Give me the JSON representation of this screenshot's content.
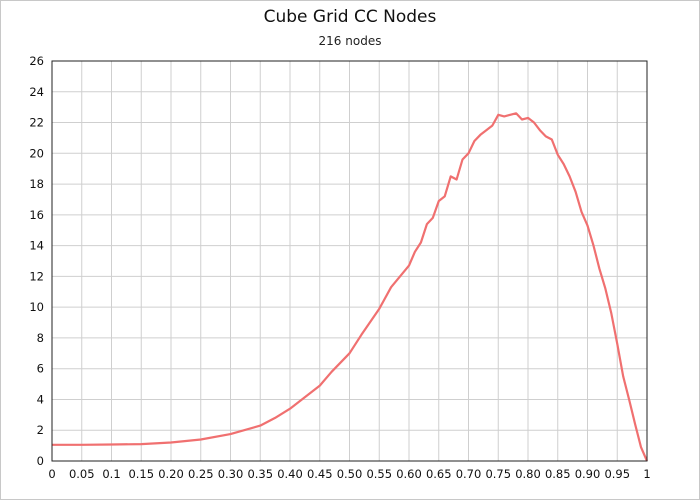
{
  "chart_data": {
    "type": "line",
    "title": "Cube Grid CC Nodes",
    "subtitle": "216 nodes",
    "xlabel": "",
    "ylabel": "",
    "xlim": [
      0,
      1
    ],
    "ylim": [
      0,
      26
    ],
    "xticks": [
      0,
      0.05,
      0.1,
      0.15,
      0.2,
      0.25,
      0.3,
      0.35,
      0.4,
      0.45,
      0.5,
      0.55,
      0.6,
      0.65,
      0.7,
      0.75,
      0.8,
      0.85,
      0.9,
      0.95,
      1
    ],
    "xtick_labels": [
      "0",
      "0.05",
      "0.1",
      "0.15",
      "0.20",
      "0.25",
      "0.30",
      "0.35",
      "0.40",
      "0.45",
      "0.50",
      "0.55",
      "0.60",
      "0.65",
      "0.70",
      "0.75",
      "0.80",
      "0.85",
      "0.90",
      "0.95",
      "1"
    ],
    "yticks": [
      0,
      2,
      4,
      6,
      8,
      10,
      12,
      14,
      16,
      18,
      20,
      22,
      24,
      26
    ],
    "ytick_labels": [
      "0",
      "2",
      "4",
      "6",
      "8",
      "10",
      "12",
      "14",
      "16",
      "18",
      "20",
      "22",
      "24",
      "26"
    ],
    "grid": true,
    "series": [
      {
        "color": "#f07070",
        "x": [
          0,
          0.05,
          0.1,
          0.15,
          0.2,
          0.25,
          0.3,
          0.35,
          0.375,
          0.4,
          0.42,
          0.45,
          0.47,
          0.5,
          0.52,
          0.55,
          0.57,
          0.6,
          0.61,
          0.62,
          0.63,
          0.64,
          0.65,
          0.66,
          0.67,
          0.68,
          0.69,
          0.7,
          0.71,
          0.72,
          0.73,
          0.74,
          0.75,
          0.76,
          0.77,
          0.78,
          0.79,
          0.8,
          0.81,
          0.82,
          0.83,
          0.84,
          0.85,
          0.86,
          0.87,
          0.88,
          0.89,
          0.9,
          0.91,
          0.92,
          0.93,
          0.94,
          0.95,
          0.96,
          0.97,
          0.98,
          0.99,
          1
        ],
        "y": [
          1.05,
          1.05,
          1.07,
          1.1,
          1.2,
          1.4,
          1.75,
          2.3,
          2.8,
          3.4,
          4.0,
          4.9,
          5.8,
          7.0,
          8.2,
          9.9,
          11.3,
          12.7,
          13.6,
          14.2,
          15.4,
          15.8,
          16.9,
          17.2,
          18.5,
          18.3,
          19.6,
          20.0,
          20.8,
          21.2,
          21.5,
          21.8,
          22.5,
          22.4,
          22.5,
          22.6,
          22.2,
          22.3,
          22.0,
          21.5,
          21.1,
          20.9,
          19.9,
          19.3,
          18.5,
          17.5,
          16.2,
          15.3,
          14.0,
          12.5,
          11.2,
          9.6,
          7.6,
          5.5,
          4.0,
          2.4,
          0.9,
          0
        ]
      }
    ]
  }
}
